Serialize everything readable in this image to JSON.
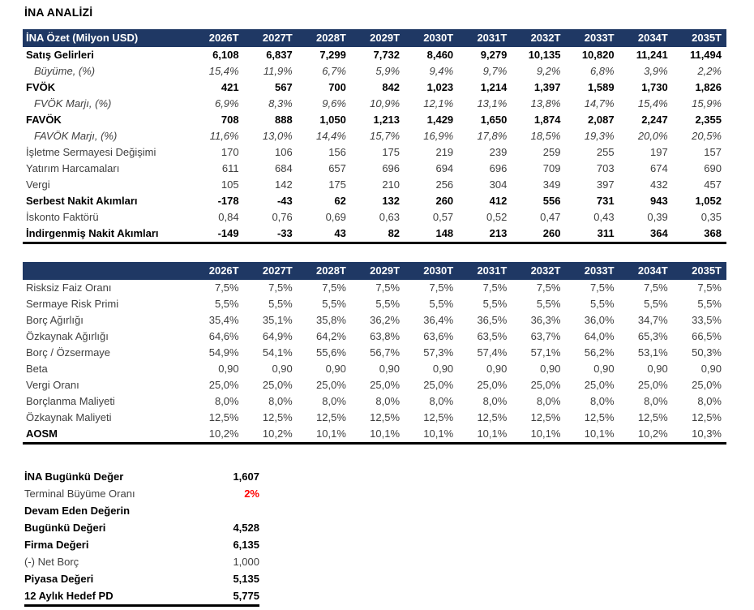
{
  "page": {
    "title": "İNA ANALİZİ"
  },
  "colors": {
    "header_bg": "#1F3864",
    "header_text": "#FFFFFF",
    "body_text": "#3F3F3F",
    "bold_text": "#000000",
    "terminal_growth_red": "#FF0000"
  },
  "dcf_table": {
    "header_label": "İNA Özet (Milyon USD)",
    "years": [
      "2026T",
      "2027T",
      "2028T",
      "2029T",
      "2030T",
      "2031T",
      "2032T",
      "2033T",
      "2034T",
      "2035T"
    ],
    "rows": [
      {
        "label": "Satış Gelirleri",
        "style": "bold",
        "values": [
          "6,108",
          "6,837",
          "7,299",
          "7,732",
          "8,460",
          "9,279",
          "10,135",
          "10,820",
          "11,241",
          "11,494"
        ]
      },
      {
        "label": "Büyüme, (%)",
        "style": "italic",
        "values": [
          "15,4%",
          "11,9%",
          "6,7%",
          "5,9%",
          "9,4%",
          "9,7%",
          "9,2%",
          "6,8%",
          "3,9%",
          "2,2%"
        ]
      },
      {
        "label": "FVÖK",
        "style": "bold",
        "values": [
          "421",
          "567",
          "700",
          "842",
          "1,023",
          "1,214",
          "1,397",
          "1,589",
          "1,730",
          "1,826"
        ]
      },
      {
        "label": "FVÖK Marjı, (%)",
        "style": "italic",
        "values": [
          "6,9%",
          "8,3%",
          "9,6%",
          "10,9%",
          "12,1%",
          "13,1%",
          "13,8%",
          "14,7%",
          "15,4%",
          "15,9%"
        ]
      },
      {
        "label": "FAVÖK",
        "style": "bold",
        "values": [
          "708",
          "888",
          "1,050",
          "1,213",
          "1,429",
          "1,650",
          "1,874",
          "2,087",
          "2,247",
          "2,355"
        ]
      },
      {
        "label": "FAVÖK Marjı, (%)",
        "style": "italic",
        "values": [
          "11,6%",
          "13,0%",
          "14,4%",
          "15,7%",
          "16,9%",
          "17,8%",
          "18,5%",
          "19,3%",
          "20,0%",
          "20,5%"
        ]
      },
      {
        "label": "İşletme Sermayesi Değişimi",
        "style": "plain",
        "values": [
          "170",
          "106",
          "156",
          "175",
          "219",
          "239",
          "259",
          "255",
          "197",
          "157"
        ]
      },
      {
        "label": "Yatırım Harcamaları",
        "style": "plain",
        "values": [
          "611",
          "684",
          "657",
          "696",
          "694",
          "696",
          "709",
          "703",
          "674",
          "690"
        ]
      },
      {
        "label": "Vergi",
        "style": "plain",
        "values": [
          "105",
          "142",
          "175",
          "210",
          "256",
          "304",
          "349",
          "397",
          "432",
          "457"
        ]
      },
      {
        "label": "Serbest Nakit Akımları",
        "style": "bold",
        "values": [
          "-178",
          "-43",
          "62",
          "132",
          "260",
          "412",
          "556",
          "731",
          "943",
          "1,052"
        ]
      },
      {
        "label": "İskonto Faktörü",
        "style": "plain",
        "values": [
          "0,84",
          "0,76",
          "0,69",
          "0,63",
          "0,57",
          "0,52",
          "0,47",
          "0,43",
          "0,39",
          "0,35"
        ]
      },
      {
        "label": "İndirgenmiş Nakit Akımları",
        "style": "bold",
        "values": [
          "-149",
          "-33",
          "43",
          "82",
          "148",
          "213",
          "260",
          "311",
          "364",
          "368"
        ]
      }
    ]
  },
  "wacc_table": {
    "header_label": "",
    "years": [
      "2026T",
      "2027T",
      "2028T",
      "2029T",
      "2030T",
      "2031T",
      "2032T",
      "2033T",
      "2034T",
      "2035T"
    ],
    "rows": [
      {
        "label": "Risksiz Faiz Oranı",
        "style": "plain",
        "values": [
          "7,5%",
          "7,5%",
          "7,5%",
          "7,5%",
          "7,5%",
          "7,5%",
          "7,5%",
          "7,5%",
          "7,5%",
          "7,5%"
        ]
      },
      {
        "label": "Sermaye Risk Primi",
        "style": "plain",
        "values": [
          "5,5%",
          "5,5%",
          "5,5%",
          "5,5%",
          "5,5%",
          "5,5%",
          "5,5%",
          "5,5%",
          "5,5%",
          "5,5%"
        ]
      },
      {
        "label": "Borç Ağırlığı",
        "style": "plain",
        "values": [
          "35,4%",
          "35,1%",
          "35,8%",
          "36,2%",
          "36,4%",
          "36,5%",
          "36,3%",
          "36,0%",
          "34,7%",
          "33,5%"
        ]
      },
      {
        "label": "Özkaynak Ağırlığı",
        "style": "plain",
        "values": [
          "64,6%",
          "64,9%",
          "64,2%",
          "63,8%",
          "63,6%",
          "63,5%",
          "63,7%",
          "64,0%",
          "65,3%",
          "66,5%"
        ]
      },
      {
        "label": "Borç / Özsermaye",
        "style": "plain",
        "values": [
          "54,9%",
          "54,1%",
          "55,6%",
          "56,7%",
          "57,3%",
          "57,4%",
          "57,1%",
          "56,2%",
          "53,1%",
          "50,3%"
        ]
      },
      {
        "label": "Beta",
        "style": "plain",
        "values": [
          "0,90",
          "0,90",
          "0,90",
          "0,90",
          "0,90",
          "0,90",
          "0,90",
          "0,90",
          "0,90",
          "0,90"
        ]
      },
      {
        "label": "Vergi Oranı",
        "style": "plain",
        "values": [
          "25,0%",
          "25,0%",
          "25,0%",
          "25,0%",
          "25,0%",
          "25,0%",
          "25,0%",
          "25,0%",
          "25,0%",
          "25,0%"
        ]
      },
      {
        "label": "Borçlanma Maliyeti",
        "style": "plain",
        "values": [
          "8,0%",
          "8,0%",
          "8,0%",
          "8,0%",
          "8,0%",
          "8,0%",
          "8,0%",
          "8,0%",
          "8,0%",
          "8,0%"
        ]
      },
      {
        "label": "Özkaynak Maliyeti",
        "style": "plain",
        "values": [
          "12,5%",
          "12,5%",
          "12,5%",
          "12,5%",
          "12,5%",
          "12,5%",
          "12,5%",
          "12,5%",
          "12,5%",
          "12,5%"
        ]
      },
      {
        "label": "AOSM",
        "style": "bold-label",
        "values": [
          "10,2%",
          "10,2%",
          "10,1%",
          "10,1%",
          "10,1%",
          "10,1%",
          "10,1%",
          "10,1%",
          "10,2%",
          "10,3%"
        ]
      }
    ]
  },
  "valuation_summary": {
    "rows": [
      {
        "label": "İNA Bugünkü Değer",
        "value": "1,607",
        "style": "bold",
        "value_style": "",
        "underline": false
      },
      {
        "label": "Terminal Büyüme Oranı",
        "value": "2%",
        "style": "plain",
        "value_style": "red",
        "underline": false
      },
      {
        "label": "Devam Eden Değerin",
        "value": "",
        "style": "bold",
        "value_style": "",
        "underline": false
      },
      {
        "label": "Bugünkü Değeri",
        "value": "4,528",
        "style": "bold",
        "value_style": "",
        "underline": false
      },
      {
        "label": "Firma Değeri",
        "value": "6,135",
        "style": "bold",
        "value_style": "",
        "underline": false
      },
      {
        "label": "(-) Net Borç",
        "value": "1,000",
        "style": "plain",
        "value_style": "",
        "underline": false
      },
      {
        "label": "Piyasa Değeri",
        "value": "5,135",
        "style": "bold",
        "value_style": "",
        "underline": false
      },
      {
        "label": "12 Aylık Hedef PD",
        "value": "5,775",
        "style": "bold",
        "value_style": "",
        "underline": true
      }
    ]
  }
}
